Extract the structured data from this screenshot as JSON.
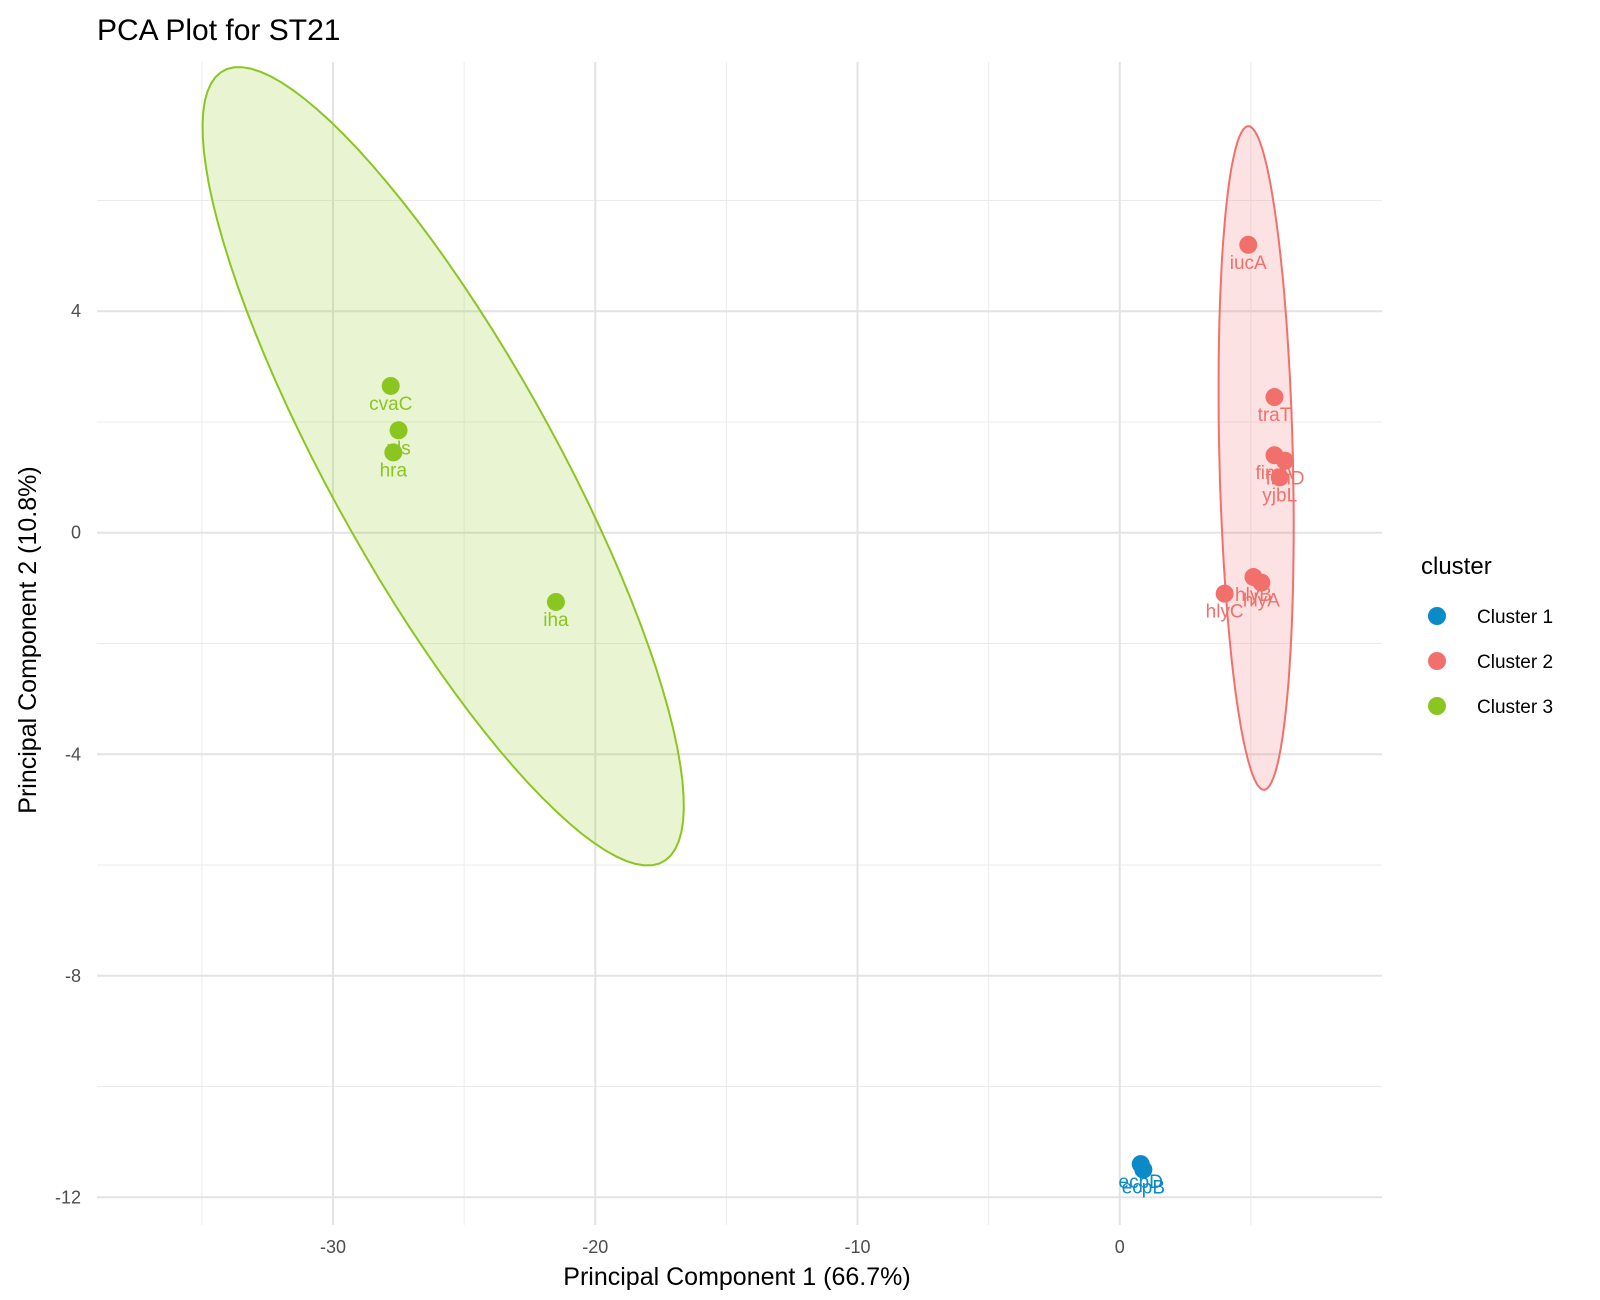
{
  "chart_data": {
    "type": "scatter",
    "title": "PCA Plot for ST21",
    "xlabel": "Principal Component 1 (66.7%)",
    "ylabel": "Principal Component 2 (10.8%)",
    "xlim": [
      -39,
      10
    ],
    "ylim": [
      -12.5,
      8.5
    ],
    "x_ticks": [
      -30,
      -20,
      -10,
      0
    ],
    "y_ticks": [
      -12,
      -8,
      -4,
      0,
      4
    ],
    "grid": true,
    "legend": {
      "title": "cluster",
      "position": "right"
    },
    "series": [
      {
        "name": "Cluster 1",
        "color": "#0a8ac6",
        "points": [
          {
            "x": 0.8,
            "y": -11.4,
            "label": "ecpD"
          },
          {
            "x": 0.9,
            "y": -11.5,
            "label": "ecpB"
          }
        ]
      },
      {
        "name": "Cluster 2",
        "color": "#f2706c",
        "ellipse": {
          "center": [
            5.2,
            1.35
          ],
          "width": 2.8,
          "height": 12.0,
          "angle_deg": 3.0
        },
        "points": [
          {
            "x": 4.9,
            "y": 5.2,
            "label": "iucA"
          },
          {
            "x": 5.9,
            "y": 2.45,
            "label": "traT"
          },
          {
            "x": 5.9,
            "y": 1.4,
            "label": "fimA"
          },
          {
            "x": 6.3,
            "y": 1.3,
            "label": "fimD"
          },
          {
            "x": 6.1,
            "y": 1.0,
            "label": "yjbL"
          },
          {
            "x": 4.0,
            "y": -1.1,
            "label": "hlyC"
          },
          {
            "x": 5.1,
            "y": -0.8,
            "label": "hlyB"
          },
          {
            "x": 5.4,
            "y": -0.9,
            "label": "hlyA"
          }
        ]
      },
      {
        "name": "Cluster 3",
        "color": "#8bc620",
        "ellipse": {
          "center": [
            -25.8,
            1.2
          ],
          "width": 6.2,
          "height": 22.5,
          "angle_deg": 53.0
        },
        "points": [
          {
            "x": -27.8,
            "y": 2.65,
            "label": "cvaC"
          },
          {
            "x": -27.5,
            "y": 1.85,
            "label": "pls"
          },
          {
            "x": -27.7,
            "y": 1.45,
            "label": "hra"
          },
          {
            "x": -21.5,
            "y": -1.25,
            "label": "iha"
          }
        ]
      }
    ]
  }
}
